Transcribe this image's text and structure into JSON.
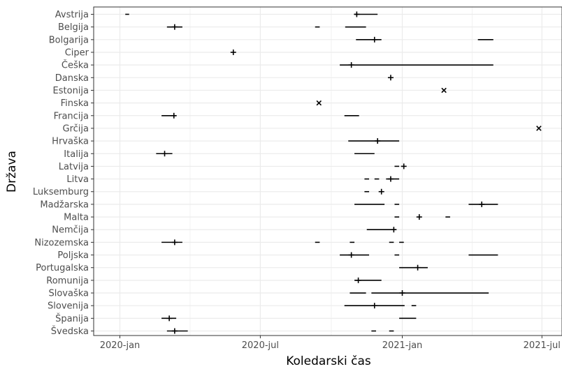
{
  "chart_data": {
    "type": "timeline",
    "xlabel": "Koledarski čas",
    "ylabel": "Država",
    "x_ticks": [
      {
        "date": "2020-01-01",
        "label": "2020-jan"
      },
      {
        "date": "2020-07-01",
        "label": "2020-jul"
      },
      {
        "date": "2021-01-01",
        "label": "2021-jan"
      },
      {
        "date": "2021-07-01",
        "label": "2021-jul"
      }
    ],
    "xlim": [
      "2019-12-05",
      "2021-07-01"
    ],
    "grid": true,
    "countries": [
      "Avstrija",
      "Belgija",
      "Bolgarija",
      "Ciper",
      "Češka",
      "Danska",
      "Estonija",
      "Finska",
      "Francija",
      "Grčija",
      "Hrvaška",
      "Italija",
      "Latvija",
      "Litva",
      "Luksemburg",
      "Madžarska",
      "Malta",
      "Nemčija",
      "Nizozemska",
      "Poljska",
      "Portugalska",
      "Romunija",
      "Slovaška",
      "Slovenija",
      "Španija",
      "Švedska"
    ],
    "rows": [
      {
        "country": "Avstrija",
        "segments": [
          [
            "2020-01-08",
            "2020-01-13"
          ],
          [
            "2020-10-31",
            "2020-11-30"
          ]
        ],
        "plus": [
          "2020-11-03"
        ],
        "cross": []
      },
      {
        "country": "Belgija",
        "segments": [
          [
            "2020-03-02",
            "2020-03-22"
          ],
          [
            "2020-09-10",
            "2020-09-16"
          ],
          [
            "2020-10-19",
            "2020-11-15"
          ]
        ],
        "plus": [
          "2020-03-12"
        ],
        "cross": []
      },
      {
        "country": "Bolgarija",
        "segments": [
          [
            "2020-11-02",
            "2020-12-05"
          ],
          [
            "2021-04-09",
            "2021-04-29"
          ]
        ],
        "plus": [
          "2020-11-26"
        ],
        "cross": []
      },
      {
        "country": "Ciper",
        "segments": [],
        "plus": [
          "2020-05-27"
        ],
        "cross": []
      },
      {
        "country": "Češka",
        "segments": [
          [
            "2020-10-12",
            "2021-04-29"
          ]
        ],
        "plus": [
          "2020-10-27"
        ],
        "cross": []
      },
      {
        "country": "Danska",
        "segments": [],
        "plus": [
          "2020-12-17"
        ],
        "cross": []
      },
      {
        "country": "Estonija",
        "segments": [],
        "plus": [],
        "cross": [
          "2021-02-24"
        ]
      },
      {
        "country": "Finska",
        "segments": [],
        "plus": [],
        "cross": [
          "2020-09-15"
        ]
      },
      {
        "country": "Francija",
        "segments": [
          [
            "2020-02-24",
            "2020-03-14"
          ],
          [
            "2020-10-18",
            "2020-11-06"
          ]
        ],
        "plus": [
          "2020-03-11"
        ],
        "cross": []
      },
      {
        "country": "Grčija",
        "segments": [],
        "plus": [],
        "cross": [
          "2021-06-27"
        ]
      },
      {
        "country": "Hrvaška",
        "segments": [
          [
            "2020-10-23",
            "2020-12-28"
          ]
        ],
        "plus": [
          "2020-11-30"
        ],
        "cross": []
      },
      {
        "country": "Italija",
        "segments": [
          [
            "2020-02-17",
            "2020-03-09"
          ],
          [
            "2020-10-31",
            "2020-11-26"
          ]
        ],
        "plus": [
          "2020-02-28"
        ],
        "cross": []
      },
      {
        "country": "Latvija",
        "segments": [
          [
            "2020-12-22",
            "2020-12-28"
          ]
        ],
        "plus": [
          "2021-01-03"
        ],
        "cross": []
      },
      {
        "country": "Litva",
        "segments": [
          [
            "2020-11-13",
            "2020-11-19"
          ],
          [
            "2020-11-26",
            "2020-12-02"
          ],
          [
            "2020-12-11",
            "2020-12-28"
          ]
        ],
        "plus": [
          "2020-12-17"
        ],
        "cross": []
      },
      {
        "country": "Luksemburg",
        "segments": [
          [
            "2020-11-13",
            "2020-11-19"
          ]
        ],
        "plus": [
          "2020-12-05"
        ],
        "cross": []
      },
      {
        "country": "Madžarska",
        "segments": [
          [
            "2020-10-31",
            "2020-12-09"
          ],
          [
            "2020-12-22",
            "2020-12-28"
          ],
          [
            "2021-03-28",
            "2021-05-05"
          ]
        ],
        "plus": [
          "2021-04-14"
        ],
        "cross": []
      },
      {
        "country": "Malta",
        "segments": [
          [
            "2020-12-22",
            "2020-12-28"
          ],
          [
            "2021-02-26",
            "2021-03-04"
          ]
        ],
        "plus": [
          "2021-01-23"
        ],
        "cross": []
      },
      {
        "country": "Nemčija",
        "segments": [
          [
            "2020-11-16",
            "2020-12-24"
          ]
        ],
        "plus": [
          "2020-12-21"
        ],
        "cross": []
      },
      {
        "country": "Nizozemska",
        "segments": [
          [
            "2020-02-24",
            "2020-03-22"
          ],
          [
            "2020-09-10",
            "2020-09-16"
          ],
          [
            "2020-10-25",
            "2020-10-31"
          ],
          [
            "2020-12-15",
            "2020-12-21"
          ],
          [
            "2020-12-28",
            "2021-01-03"
          ]
        ],
        "plus": [
          "2020-03-12"
        ],
        "cross": []
      },
      {
        "country": "Poljska",
        "segments": [
          [
            "2020-10-12",
            "2020-11-19"
          ],
          [
            "2020-12-22",
            "2020-12-28"
          ],
          [
            "2021-03-28",
            "2021-05-05"
          ]
        ],
        "plus": [
          "2020-10-27"
        ],
        "cross": []
      },
      {
        "country": "Portugalska",
        "segments": [
          [
            "2020-12-28",
            "2021-02-03"
          ]
        ],
        "plus": [
          "2021-01-21"
        ],
        "cross": []
      },
      {
        "country": "Romunija",
        "segments": [
          [
            "2020-10-31",
            "2020-12-05"
          ]
        ],
        "plus": [
          "2020-11-05"
        ],
        "cross": []
      },
      {
        "country": "Slovaška",
        "segments": [
          [
            "2020-10-25",
            "2020-11-15"
          ],
          [
            "2020-11-22",
            "2021-04-23"
          ]
        ],
        "plus": [
          "2021-01-01"
        ],
        "cross": []
      },
      {
        "country": "Slovenija",
        "segments": [
          [
            "2020-10-18",
            "2021-01-04"
          ],
          [
            "2021-01-13",
            "2021-01-19"
          ]
        ],
        "plus": [
          "2020-11-26"
        ],
        "cross": []
      },
      {
        "country": "Španija",
        "segments": [
          [
            "2020-02-24",
            "2020-03-14"
          ],
          [
            "2020-12-28",
            "2021-01-19"
          ]
        ],
        "plus": [
          "2020-03-05"
        ],
        "cross": []
      },
      {
        "country": "Švedska",
        "segments": [
          [
            "2020-03-02",
            "2020-03-29"
          ],
          [
            "2020-11-22",
            "2020-11-28"
          ],
          [
            "2020-12-15",
            "2020-12-21"
          ]
        ],
        "plus": [
          "2020-03-12"
        ],
        "cross": []
      }
    ]
  }
}
